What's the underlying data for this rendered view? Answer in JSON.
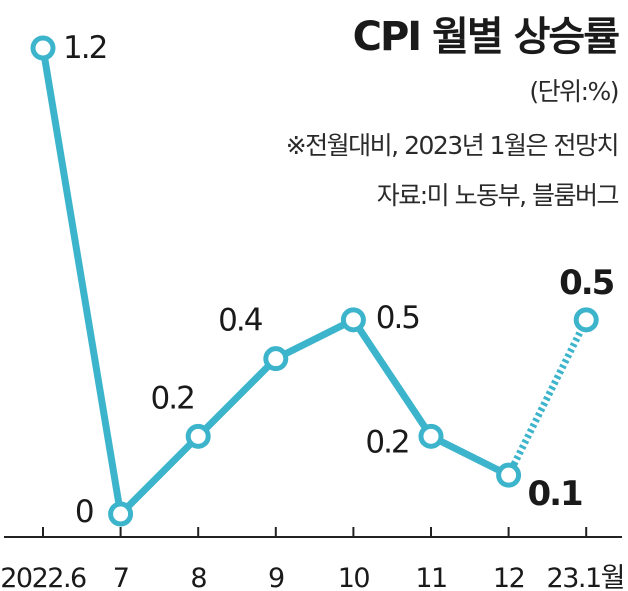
{
  "header": {
    "title": "CPI 월별 상승률",
    "unit": "(단위:%)",
    "note": "※전월대비, 2023년 1월은 전망치",
    "source": "자료:미 노동부, 블룸버그"
  },
  "chart_data": {
    "type": "line",
    "title": "CPI 월별 상승률",
    "categories": [
      "2022.6",
      "7",
      "8",
      "9",
      "10",
      "11",
      "12",
      "23.1월"
    ],
    "values": [
      1.2,
      0,
      0.2,
      0.4,
      0.5,
      0.2,
      0.1,
      0.5
    ],
    "value_labels": [
      "1.2",
      "0",
      "0.2",
      "0.4",
      "0.5",
      "0.2",
      "0.1",
      "0.5"
    ],
    "forecast_from_index": 6,
    "highlight_indices": [
      6,
      7
    ],
    "ylim": [
      0,
      1.2
    ],
    "grid": false,
    "legend": "none",
    "colors": {
      "line": "#3cb4cb",
      "text": "#1a1a1a"
    }
  }
}
